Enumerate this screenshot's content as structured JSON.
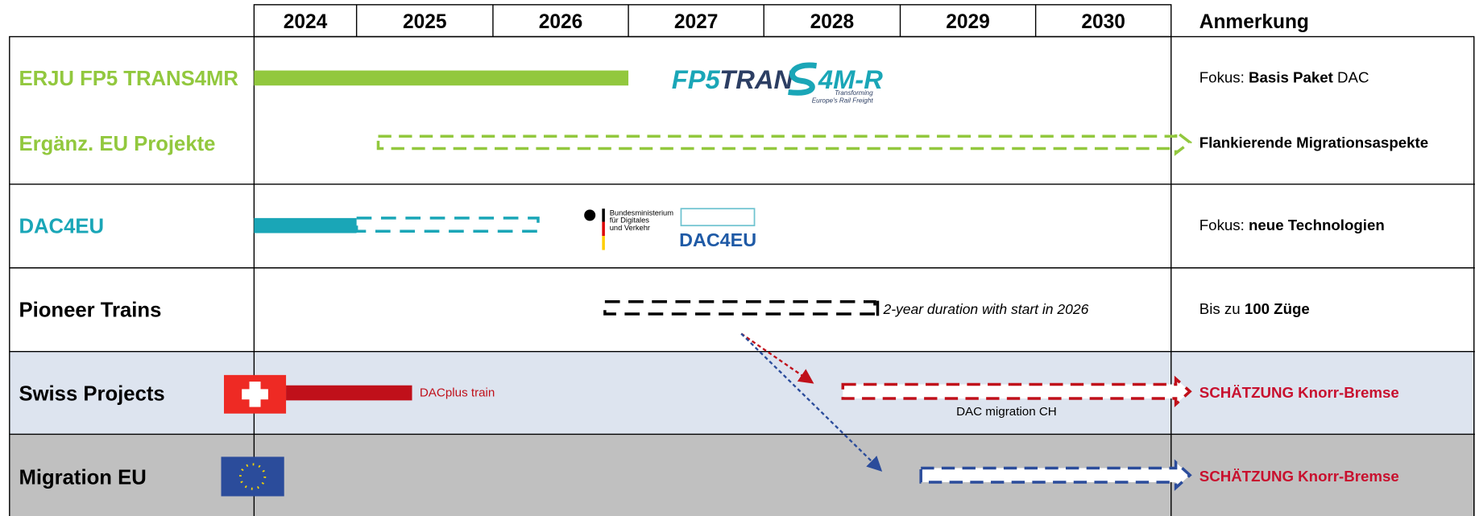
{
  "header": {
    "years": [
      "2024",
      "2025",
      "2026",
      "2027",
      "2028",
      "2029",
      "2030"
    ],
    "remarks_title": "Anmerkung"
  },
  "rows": [
    {
      "label": "ERJU FP5 TRANS4MR",
      "remark": [
        "Fokus: ",
        "Basis Paket",
        " DAC"
      ]
    },
    {
      "label": "Ergänz. EU Projekte",
      "remark": [
        "",
        "Flankierende Migrationsaspekte",
        ""
      ]
    },
    {
      "label": "DAC4EU",
      "remark": [
        "Fokus: ",
        "neue Technologien",
        ""
      ]
    },
    {
      "label": "Pioneer Trains",
      "remark": [
        "Bis zu ",
        "100 Züge",
        ""
      ]
    },
    {
      "label": "Swiss Projects",
      "remark": [
        "",
        "SCHÄTZUNG Knorr-Bremse",
        ""
      ]
    },
    {
      "label": "Migration EU",
      "remark": [
        "",
        "SCHÄTZUNG Knorr-Bremse",
        ""
      ]
    }
  ],
  "annotations": {
    "pioneer": "2-year duration with start in 2026",
    "dacplus": "DACplus train",
    "migration_ch": "DAC migration CH"
  },
  "logos": {
    "fp5_a": "FP5",
    "fp5_b": "TRAN",
    "fp5_c": "4M-R",
    "fp5_sub1": "Transforming",
    "fp5_sub2": "Europe's Rail Freight",
    "bmdv1": "Bundesministerium",
    "bmdv2": "für Digitales",
    "bmdv3": "und Verkehr",
    "dac4eu": "DAC4EU"
  }
}
